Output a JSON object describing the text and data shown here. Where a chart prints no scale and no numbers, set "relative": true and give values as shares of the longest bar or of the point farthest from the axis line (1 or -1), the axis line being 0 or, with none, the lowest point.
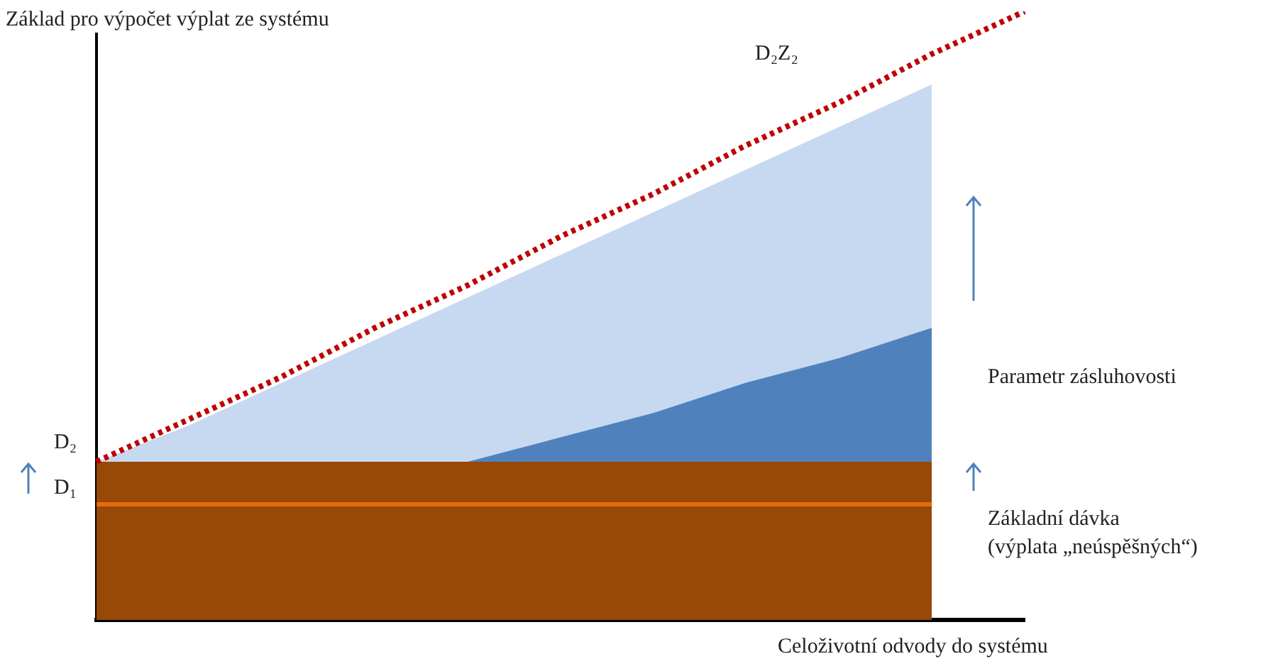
{
  "chart_data": {
    "type": "area",
    "title": "Základ pro výpočet výplat ze systému",
    "xlabel": "Celoživotní odvody do systému",
    "relative": true,
    "legend": false,
    "grid": false,
    "marker": "none",
    "categories": [
      null,
      null,
      null,
      null,
      null,
      null,
      null,
      null,
      null,
      null,
      null
    ],
    "series": [
      {
        "color": "#c6d9f0",
        "values": [
          0.26,
          0.32,
          0.39,
          0.46,
          0.53,
          0.6,
          0.67,
          0.74,
          0.81,
          0.88,
          null
        ]
      },
      {
        "color": "#4f81bd",
        "values": [
          null,
          null,
          null,
          null,
          0.26,
          0.3,
          0.34,
          0.39,
          0.43,
          0.48,
          null
        ]
      },
      {
        "color": "#984807",
        "values": [
          0.26,
          0.26,
          0.26,
          0.26,
          0.26,
          0.26,
          0.26,
          0.26,
          0.26,
          0.26,
          null
        ]
      },
      {
        "type": "line",
        "color": "#e46c0a",
        "values": [
          0.19,
          0.19,
          0.19,
          0.19,
          0.19,
          0.19,
          0.19,
          0.19,
          0.19,
          0.19,
          null
        ],
        "line_style": "solid"
      },
      {
        "type": "line",
        "color": "#c00000",
        "values": [
          0.26,
          0.33,
          0.4,
          0.48,
          0.55,
          0.63,
          0.7,
          0.78,
          0.85,
          0.93,
          1
        ],
        "line_style": "dotted"
      }
    ],
    "annotations": [
      "D₂Z₂",
      "D₂",
      "D₁",
      "Parametr zásluhovosti",
      "Základní dávka",
      "(výplata „neúspěšných“)"
    ]
  }
}
